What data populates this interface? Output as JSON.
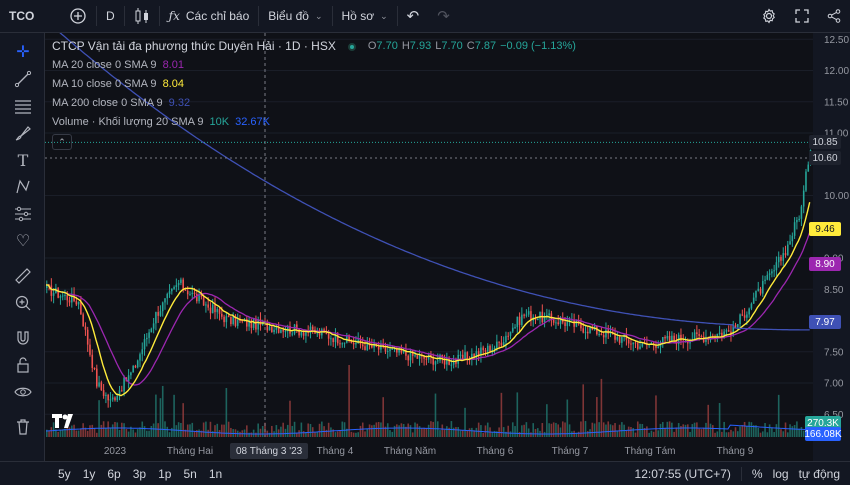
{
  "topbar": {
    "symbol": "TCO",
    "interval": "D",
    "indicators_label": "Các chỉ báo",
    "chart_type_label": "Biểu đồ",
    "layout_label": "Hồ sơ"
  },
  "legend": {
    "title": "CTCP Vận tải đa phương thức Duyên Hải · 1D · HSX",
    "ohlc": [
      {
        "k": "O",
        "v": "7.70"
      },
      {
        "k": "H",
        "v": "7.93"
      },
      {
        "k": "L",
        "v": "7.70"
      },
      {
        "k": "C",
        "v": "7.87"
      }
    ],
    "change": "−0.09 (−1.13%)",
    "ma20": {
      "label": "MA 20 close 0 SMA 9",
      "value": "8.01",
      "color": "#9c27b0"
    },
    "ma10": {
      "label": "MA 10 close 0 SMA 9",
      "value": "8.04",
      "color": "#ffeb3b"
    },
    "ma200": {
      "label": "MA 200 close 0 SMA 9",
      "value": "9.32",
      "color": "#3f51b5"
    },
    "volume": {
      "label": "Volume · Khối lượng 20 SMA 9",
      "value": "10K",
      "value2": "32.67K"
    }
  },
  "price_axis": {
    "ticks": [
      "12.50",
      "12.00",
      "11.50",
      "11.00",
      "10.00",
      "9.00",
      "8.50",
      "7.50",
      "7.00",
      "6.50"
    ],
    "tags": [
      {
        "value": "10.85",
        "bg": "#1e222d",
        "fg": "#d1d4dc"
      },
      {
        "value": "10.60",
        "bg": "#1e222d",
        "fg": "#d1d4dc"
      },
      {
        "value": "9.46",
        "bg": "#ffeb3b",
        "fg": "#131722"
      },
      {
        "value": "8.90",
        "bg": "#9c27b0",
        "fg": "#ffffff"
      },
      {
        "value": "7.97",
        "bg": "#3f51b5",
        "fg": "#ffffff"
      },
      {
        "value": "270.3K",
        "bg": "#26a69a",
        "fg": "#ffffff"
      },
      {
        "value": "166.08K",
        "bg": "#2962ff",
        "fg": "#ffffff"
      }
    ]
  },
  "time_axis": {
    "labels": [
      "2023",
      "Tháng Hai",
      "Tháng 4",
      "Tháng Năm",
      "Tháng 6",
      "Tháng 7",
      "Tháng Tám",
      "Tháng 9"
    ],
    "crosshair_label": "08 Tháng 3 '23"
  },
  "bottombar": {
    "timeframes": [
      "5y",
      "1y",
      "6p",
      "3p",
      "1p",
      "5n",
      "1n"
    ],
    "clock": "12:07:55 (UTC+7)",
    "percent": "%",
    "log": "log",
    "auto": "tự động"
  },
  "colors": {
    "up": "#26a69a",
    "down": "#ef5350",
    "ma10": "#ffeb3b",
    "ma20": "#9c27b0",
    "ma200": "#3f51b5"
  },
  "chart_data": {
    "type": "line",
    "title": "CTCP Vận tải đa phương thức Duyên Hải · 1D · HSX",
    "ylim": [
      6.2,
      12.6
    ],
    "x": [
      "2023",
      "Tháng Hai",
      "Tháng 4",
      "Tháng Năm",
      "Tháng 6",
      "Tháng 7",
      "Tháng Tám",
      "Tháng 9"
    ],
    "close_series": {
      "name": "",
      "values": [
        8.5,
        7.0,
        8.2,
        7.9,
        7.5,
        7.6,
        8.1,
        7.9,
        7.8,
        10.6
      ]
    },
    "ma10_series": {
      "name": "MA 10",
      "values": [
        8.6,
        7.1,
        8.1,
        7.9,
        7.6,
        7.5,
        8.0,
        7.9,
        7.8,
        9.46
      ]
    },
    "ma20_series": {
      "name": "MA 20",
      "values": [
        8.5,
        7.5,
        7.9,
        8.0,
        7.7,
        7.5,
        7.9,
        7.9,
        7.8,
        8.9
      ]
    },
    "ma200_series": {
      "name": "MA 200",
      "values": [
        11.5,
        10.4,
        9.5,
        8.9,
        8.5,
        8.3,
        8.2,
        8.0,
        7.97,
        7.97
      ]
    }
  }
}
